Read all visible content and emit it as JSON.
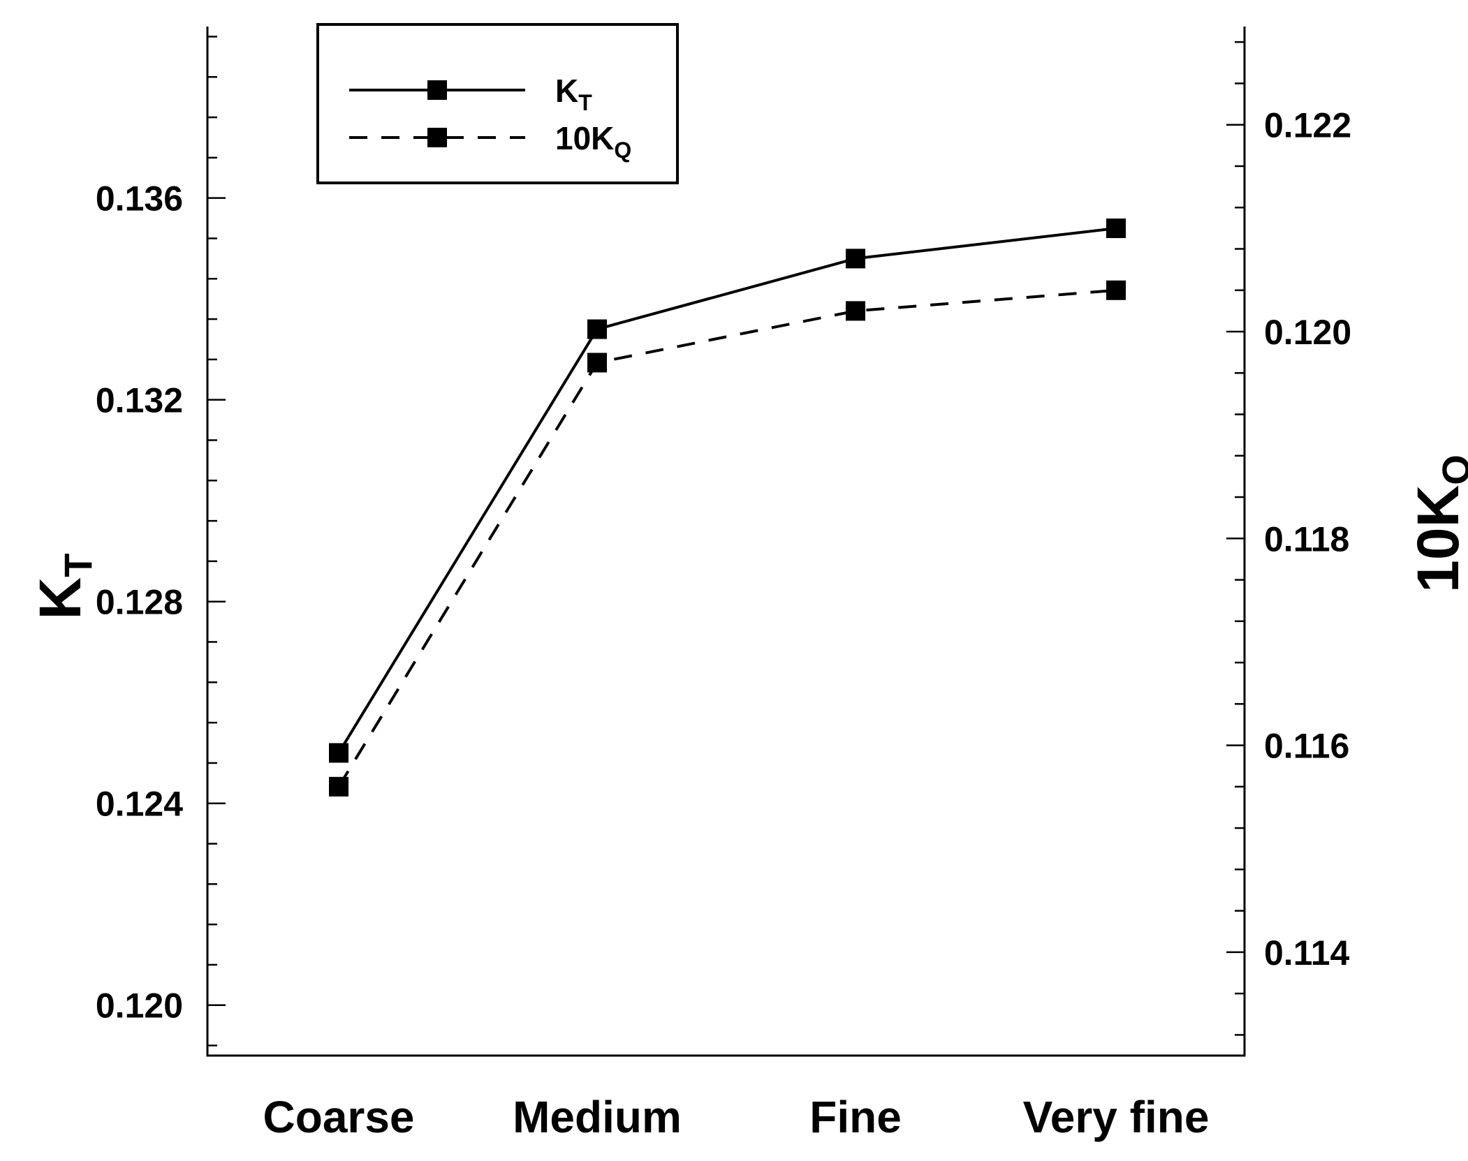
{
  "chart_data": {
    "type": "line",
    "title": "",
    "categories": [
      "Coarse",
      "Medium",
      "Fine",
      "Very fine"
    ],
    "xlabel": "",
    "y_left": {
      "label_main": "K",
      "label_sub": "T",
      "lim": [
        0.119,
        0.1394
      ],
      "ticks": [
        "0.120",
        "0.124",
        "0.128",
        "0.132",
        "0.136"
      ],
      "tick_values": [
        0.12,
        0.124,
        0.128,
        0.132,
        0.136
      ],
      "minor_step": 0.0008
    },
    "y_right": {
      "label_main": "10K",
      "label_sub": "Q",
      "lim": [
        0.113,
        0.12295
      ],
      "ticks": [
        "0.114",
        "0.116",
        "0.118",
        "0.120",
        "0.122"
      ],
      "tick_values": [
        0.114,
        0.116,
        0.118,
        0.12,
        0.122
      ],
      "minor_step": 0.0004
    },
    "series": [
      {
        "name_main": "K",
        "name_sub": "T",
        "axis": "left",
        "style": "solid",
        "values": [
          0.125,
          0.1334,
          0.1348,
          0.1354
        ]
      },
      {
        "name_main": "10K",
        "name_sub": "Q",
        "axis": "right",
        "style": "dashed",
        "values": [
          0.1156,
          0.1197,
          0.1202,
          0.1204
        ]
      }
    ],
    "legend_position": "top-left",
    "grid": false
  }
}
